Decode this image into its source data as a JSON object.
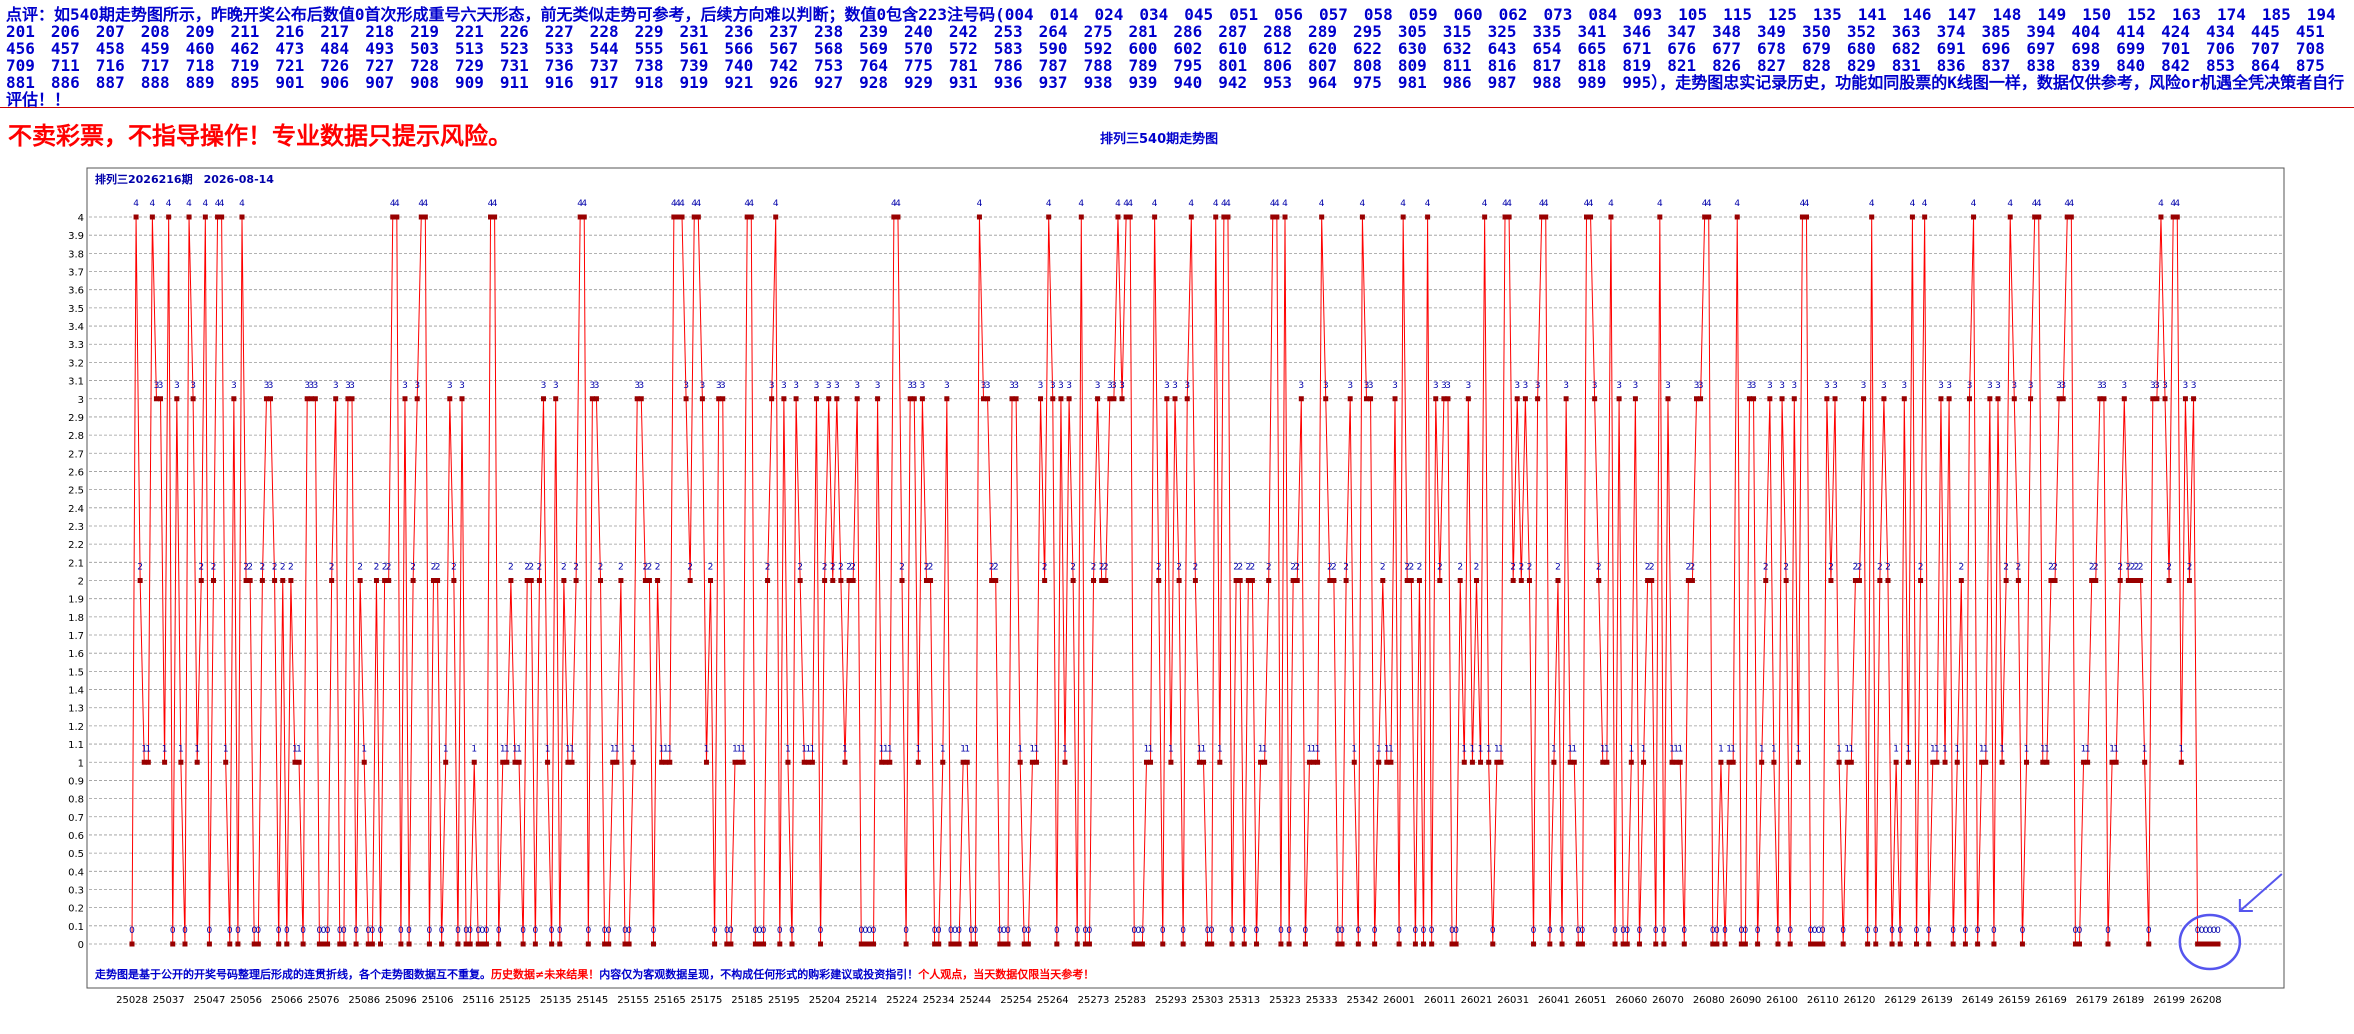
{
  "header": {
    "commentary": "点评：如540期走势图所示，昨晚开奖公布后数值0首次形成重号六天形态，前无类似走势可参考，后续方向难以判断；数值0包含223注号码(004　014　024　034　045　051　056　057　058　059　060　062　073　084　093　105　115　125　135　141　146　147　148　149　150　152　163　174　185　194　201　206　207　208　209　211　216　217　218　219　221　226　227　228　229　231　236　237　238　239　240　242　253　264　275　281　286　287　288　289　295　305　315　325　335　341　346　347　348　349　350　352　363　374　385　394　404　414　424　434　445　451　456　457　458　459　460　462　473　484　493　503　513　523　533　544　555　561　566　567　568　569　570　572　583　590　592　600　602　610　612　620　622　630　632　643　654　665　671　676　677　678　679　680　682　691　696　697　698　699　701　706　707　708　709　711　716　717　718　719　721　726　727　728　729　731　736　737　738　739　740　742　753　764　775　781　786　787　788　789　795　801　806　807　808　809　811　816　817　818　819　821　826　827　828　829　831　836　837　838　839　840　842　853　864　875　881　886　887　888　889　895　901　906　907　908　909　911　916　917　918　919　921　926　927　928　929　931　936　937　938　939　940　942　953　964　975　981　986　987　988　989　995），走势图忠实记录历史，功能如同股票的K线图一样，数据仅供参考，风险or机遇全凭决策者自行评估！！",
    "warning": "不卖彩票，不指导操作！专业数据只提示风险。",
    "chart_heading": "排列三540期走势图"
  },
  "footer": {
    "part1": "走势图是基于公开的开奖号码整理后形成的连贯折线，各个走势图数据互不重复。",
    "part2": "历史数据≠未来结果！",
    "part3": "内容仅为客观数据呈现，不构成任何形式的购彩建议或投资指引！",
    "part4": "个人观点，当天数据仅限当天参考！"
  },
  "colors": {
    "line": "#ff0000",
    "marker": "#990000",
    "value_label": "#0000aa",
    "grid": "#999999",
    "highlight": "#5555ee"
  },
  "chart_data": {
    "type": "line",
    "title": "排列三2026216期　2026-08-14",
    "ylim": [
      0,
      4
    ],
    "yticks": [
      "0",
      "0.1",
      "0.2",
      "0.3",
      "0.4",
      "0.5",
      "0.6",
      "0.7",
      "0.8",
      "0.9",
      "1",
      "1.1",
      "1.2",
      "1.3",
      "1.4",
      "1.5",
      "1.6",
      "1.7",
      "1.8",
      "1.9",
      "2",
      "2.1",
      "2.2",
      "2.3",
      "2.4",
      "2.5",
      "2.6",
      "2.7",
      "2.8",
      "2.9",
      "3",
      "3.1",
      "3.2",
      "3.3",
      "3.4",
      "3.5",
      "3.6",
      "3.7",
      "3.8",
      "3.9",
      "4"
    ],
    "x_tick_labels": [
      "25028",
      "25037",
      "25047",
      "25056",
      "25066",
      "25076",
      "25086",
      "25096",
      "25106",
      "25116",
      "25125",
      "25135",
      "25145",
      "25155",
      "25165",
      "25175",
      "25185",
      "25195",
      "25204",
      "25214",
      "25224",
      "25234",
      "25244",
      "25254",
      "25264",
      "25273",
      "25283",
      "25293",
      "25303",
      "25313",
      "25323",
      "25333",
      "25342",
      "26001",
      "26011",
      "26021",
      "26031",
      "26041",
      "26051",
      "26060",
      "26070",
      "26080",
      "26090",
      "26100",
      "26110",
      "26120",
      "26129",
      "26139",
      "26149",
      "26159",
      "26169",
      "26179",
      "26189",
      "26199",
      "26208"
    ],
    "grid": true,
    "legend": "none",
    "values": [
      0,
      4,
      2,
      1,
      1,
      4,
      3,
      3,
      1,
      4,
      0,
      3,
      1,
      0,
      4,
      3,
      1,
      2,
      4,
      0,
      2,
      4,
      4,
      1,
      0,
      3,
      0,
      4,
      2,
      2,
      0,
      0,
      2,
      3,
      3,
      2,
      0,
      2,
      0,
      2,
      1,
      1,
      0,
      3,
      3,
      3,
      0,
      0,
      0,
      2,
      3,
      0,
      0,
      3,
      3,
      0,
      2,
      1,
      0,
      0,
      2,
      0,
      2,
      2,
      4,
      4,
      0,
      3,
      0,
      2,
      3,
      4,
      4,
      0,
      2,
      2,
      0,
      1,
      3,
      2,
      0,
      3,
      0,
      0,
      1,
      0,
      0,
      0,
      4,
      4,
      0,
      1,
      1,
      2,
      1,
      1,
      0,
      2,
      2,
      0,
      2,
      3,
      1,
      0,
      3,
      0,
      2,
      1,
      1,
      2,
      4,
      4,
      0,
      3,
      3,
      2,
      0,
      0,
      1,
      1,
      2,
      0,
      0,
      1,
      3,
      3,
      2,
      2,
      0,
      2,
      1,
      1,
      1,
      4,
      4,
      4,
      3,
      2,
      4,
      4,
      3,
      1,
      2,
      0,
      3,
      3,
      0,
      0,
      1,
      1,
      1,
      4,
      4,
      0,
      0,
      0,
      2,
      3,
      4,
      0,
      3,
      1,
      0,
      3,
      2,
      1,
      1,
      1,
      3,
      0,
      2,
      3,
      2,
      3,
      2,
      1,
      2,
      2,
      3,
      0,
      0,
      0,
      0,
      3,
      1,
      1,
      1,
      4,
      4,
      2,
      0,
      3,
      3,
      1,
      3,
      2,
      2,
      0,
      0,
      1,
      3,
      0,
      0,
      0,
      1,
      1,
      0,
      0,
      4,
      3,
      3,
      2,
      2,
      0,
      0,
      0,
      3,
      3,
      1,
      0,
      0,
      1,
      1,
      3,
      2,
      4,
      3,
      0,
      3,
      1,
      3,
      2,
      0,
      4,
      0,
      0,
      2,
      3,
      2,
      2,
      3,
      3,
      4,
      3,
      4,
      4,
      0,
      0,
      0,
      1,
      1,
      4,
      2,
      0,
      3,
      1,
      3,
      2,
      0,
      3,
      4,
      2,
      1,
      1,
      0,
      0,
      4,
      1,
      4,
      4,
      0,
      2,
      2,
      0,
      2,
      2,
      0,
      1,
      1,
      2,
      4,
      4,
      0,
      4,
      0,
      2,
      2,
      3,
      0,
      1,
      1,
      1,
      4,
      3,
      2,
      2,
      0,
      0,
      2,
      3,
      1,
      0,
      4,
      3,
      3,
      0,
      1,
      2,
      1,
      1,
      3,
      0,
      4,
      2,
      2,
      0,
      2,
      0,
      4,
      0,
      3,
      2,
      3,
      3,
      0,
      0,
      2,
      1,
      3,
      1,
      2,
      1,
      4,
      1,
      0,
      1,
      1,
      4,
      4,
      2,
      3,
      2,
      3,
      2,
      0,
      3,
      4,
      4,
      0,
      1,
      2,
      0,
      3,
      1,
      1,
      0,
      0,
      4,
      4,
      3,
      2,
      1,
      1,
      4,
      0,
      3,
      0,
      0,
      1,
      3,
      0,
      1,
      2,
      2,
      0,
      4,
      0,
      3,
      1,
      1,
      1,
      0,
      2,
      2,
      3,
      3,
      4,
      4,
      0,
      0,
      1,
      0,
      1,
      1,
      4,
      0,
      0,
      3,
      3,
      0,
      1,
      2,
      3,
      1,
      0,
      3,
      2,
      0,
      3,
      1,
      4,
      4,
      0,
      0,
      0,
      0,
      3,
      2,
      3,
      1,
      0,
      1,
      1,
      2,
      2,
      3,
      0,
      4,
      0,
      2,
      3,
      2,
      0,
      1,
      0,
      3,
      1,
      4,
      0,
      2,
      4,
      0,
      1,
      1,
      3,
      1,
      3,
      0,
      1,
      2,
      0,
      3,
      4,
      0,
      1,
      1,
      3,
      0,
      3,
      1,
      2,
      4,
      3,
      2,
      0,
      1,
      3,
      4,
      4,
      1,
      1,
      2,
      2,
      3,
      3,
      4,
      4,
      0,
      0,
      1,
      1,
      2,
      2,
      3,
      3,
      0,
      1,
      1,
      2,
      3,
      2,
      2,
      2,
      2,
      1,
      0,
      3,
      3,
      4,
      3,
      2,
      4,
      4,
      1,
      3,
      2,
      3,
      0,
      0,
      0,
      0,
      0,
      0
    ]
  }
}
